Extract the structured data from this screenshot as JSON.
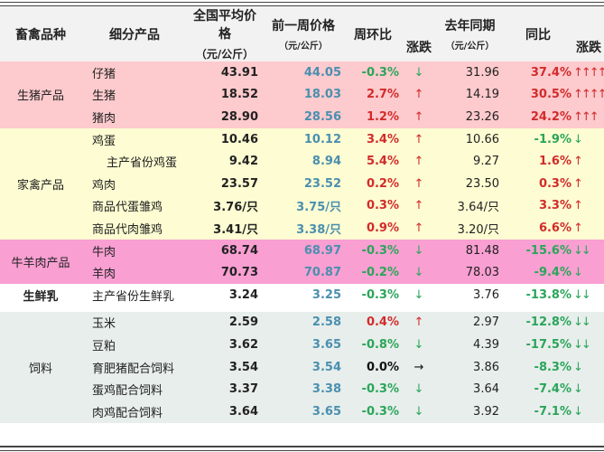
{
  "headers": {
    "category": "畜禽品种",
    "product": "细分产品",
    "avg_price": "全国平均价格",
    "avg_unit": "（元/公斤）",
    "prev_price": "前一周价格",
    "prev_unit": "（元/公斤）",
    "wow": "周环比",
    "wow_trend": "涨跌",
    "last_year": "去年同期",
    "last_year_unit": "（元/公斤）",
    "yoy": "同比",
    "yoy_trend": "涨跌"
  },
  "colors": {
    "pig": "#fdcacd",
    "poultry": "#fdfcd2",
    "beef": "#f99fd2",
    "milk": "#ffffff",
    "feed": "#e7eeeb",
    "up": "#d22b2b",
    "down": "#2aa55a"
  },
  "groups": [
    {
      "category": "生猪产品",
      "color": "pig",
      "rows": [
        {
          "product": "仔猪",
          "avg": "43.91",
          "prev": "44.05",
          "wow": "-0.3%",
          "wow_arrow": "↓",
          "wow_dir": "down",
          "ly": "31.96",
          "yoy": "37.4%",
          "yoy_arrow": "↑↑↑↑",
          "yoy_dir": "up"
        },
        {
          "product": "生猪",
          "avg": "18.52",
          "prev": "18.03",
          "wow": "2.7%",
          "wow_arrow": "↑",
          "wow_dir": "up",
          "ly": "14.19",
          "yoy": "30.5%",
          "yoy_arrow": "↑↑↑↑",
          "yoy_dir": "up"
        },
        {
          "product": "猪肉",
          "avg": "28.90",
          "prev": "28.56",
          "wow": "1.2%",
          "wow_arrow": "↑",
          "wow_dir": "up",
          "ly": "23.26",
          "yoy": "24.2%",
          "yoy_arrow": "↑↑↑",
          "yoy_dir": "up"
        }
      ]
    },
    {
      "category": "家禽产品",
      "color": "poultry",
      "rows": [
        {
          "product": "鸡蛋",
          "avg": "10.46",
          "prev": "10.12",
          "wow": "3.4%",
          "wow_arrow": "↑",
          "wow_dir": "up",
          "ly": "10.66",
          "yoy": "-1.9%",
          "yoy_arrow": "↓",
          "yoy_dir": "down"
        },
        {
          "product": "主产省份鸡蛋",
          "indent": true,
          "avg": "9.42",
          "prev": "8.94",
          "wow": "5.4%",
          "wow_arrow": "↑",
          "wow_dir": "up",
          "ly": "9.27",
          "yoy": "1.6%",
          "yoy_arrow": "↑",
          "yoy_dir": "up"
        },
        {
          "product": "鸡肉",
          "avg": "23.57",
          "prev": "23.52",
          "wow": "0.2%",
          "wow_arrow": "↑",
          "wow_dir": "up",
          "ly": "23.50",
          "yoy": "0.3%",
          "yoy_arrow": "↑",
          "yoy_dir": "up"
        },
        {
          "product": "商品代蛋雏鸡",
          "avg": "3.76/只",
          "prev": "3.75/只",
          "wow": "0.3%",
          "wow_arrow": "↑",
          "wow_dir": "up",
          "ly": "3.64/只",
          "yoy": "3.3%",
          "yoy_arrow": "↑",
          "yoy_dir": "up"
        },
        {
          "product": "商品代肉雏鸡",
          "avg": "3.41/只",
          "prev": "3.38/只",
          "wow": "0.9%",
          "wow_arrow": "↑",
          "wow_dir": "up",
          "ly": "3.20/只",
          "yoy": "6.6%",
          "yoy_arrow": "↑",
          "yoy_dir": "up"
        }
      ]
    },
    {
      "category": "牛羊肉产品",
      "color": "beef",
      "rows": [
        {
          "product": "牛肉",
          "avg": "68.74",
          "prev": "68.97",
          "wow": "-0.3%",
          "wow_arrow": "↓",
          "wow_dir": "down",
          "ly": "81.48",
          "yoy": "-15.6%",
          "yoy_arrow": "↓↓",
          "yoy_dir": "down"
        },
        {
          "product": "羊肉",
          "avg": "70.73",
          "prev": "70.87",
          "wow": "-0.2%",
          "wow_arrow": "↓",
          "wow_dir": "down",
          "ly": "78.03",
          "yoy": "-9.4%",
          "yoy_arrow": "↓",
          "yoy_dir": "down"
        }
      ]
    },
    {
      "category": "生鲜乳",
      "color": "milk",
      "bold_category": true,
      "rows": [
        {
          "product": "主产省份生鲜乳",
          "avg": "3.24",
          "prev": "3.25",
          "wow": "-0.3%",
          "wow_arrow": "↓",
          "wow_dir": "down",
          "ly": "3.76",
          "yoy": "-13.8%",
          "yoy_arrow": "↓↓",
          "yoy_dir": "down"
        }
      ]
    },
    {
      "category": "饲料",
      "color": "feed",
      "rows": [
        {
          "product": "玉米",
          "avg": "2.59",
          "prev": "2.58",
          "wow": "0.4%",
          "wow_arrow": "↑",
          "wow_dir": "up",
          "ly": "2.97",
          "yoy": "-12.8%",
          "yoy_arrow": "↓↓",
          "yoy_dir": "down"
        },
        {
          "product": "豆粕",
          "avg": "3.62",
          "prev": "3.65",
          "wow": "-0.8%",
          "wow_arrow": "↓",
          "wow_dir": "down",
          "ly": "4.39",
          "yoy": "-17.5%",
          "yoy_arrow": "↓↓",
          "yoy_dir": "down"
        },
        {
          "product": "育肥猪配合饲料",
          "avg": "3.54",
          "prev": "3.54",
          "wow": "0.0%",
          "wow_arrow": "→",
          "wow_dir": "flat",
          "ly": "3.86",
          "yoy": "-8.3%",
          "yoy_arrow": "↓",
          "yoy_dir": "down"
        },
        {
          "product": "蛋鸡配合饲料",
          "avg": "3.37",
          "prev": "3.38",
          "wow": "-0.3%",
          "wow_arrow": "↓",
          "wow_dir": "down",
          "ly": "3.64",
          "yoy": "-7.4%",
          "yoy_arrow": "↓",
          "yoy_dir": "down"
        },
        {
          "product": "肉鸡配合饲料",
          "avg": "3.64",
          "prev": "3.65",
          "wow": "-0.3%",
          "wow_arrow": "↓",
          "wow_dir": "down",
          "ly": "3.92",
          "yoy": "-7.1%",
          "yoy_arrow": "↓",
          "yoy_dir": "down"
        }
      ]
    }
  ]
}
